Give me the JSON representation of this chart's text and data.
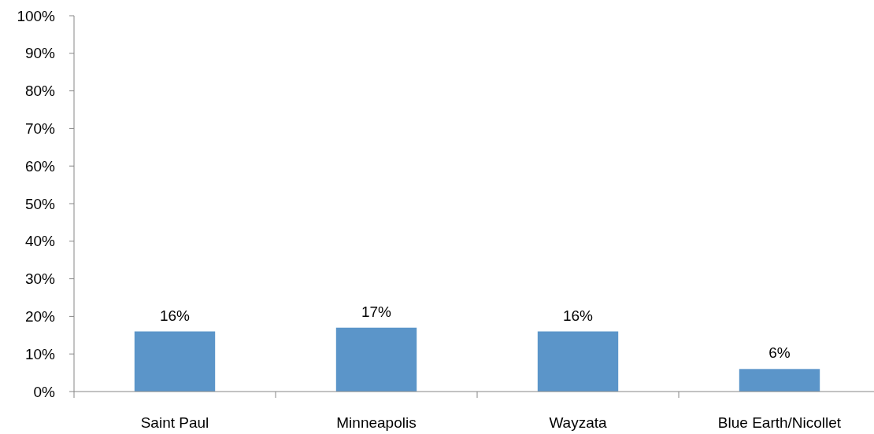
{
  "chart_data": {
    "type": "bar",
    "categories": [
      "Saint Paul",
      "Minneapolis",
      "Wayzata",
      "Blue Earth/Nicollet"
    ],
    "values": [
      16,
      17,
      16,
      6
    ],
    "color": "#5b95c9",
    "value_labels": [
      "16%",
      "17%",
      "16%",
      "6%"
    ],
    "ylim": [
      0,
      100
    ],
    "yticks": [
      {
        "value": 0,
        "label": "0%"
      },
      {
        "value": 10,
        "label": "10%"
      },
      {
        "value": 20,
        "label": "20%"
      },
      {
        "value": 30,
        "label": "30%"
      },
      {
        "value": 40,
        "label": "40%"
      },
      {
        "value": 50,
        "label": "50%"
      },
      {
        "value": 60,
        "label": "60%"
      },
      {
        "value": 70,
        "label": "70%"
      },
      {
        "value": 80,
        "label": "80%"
      },
      {
        "value": 90,
        "label": "90%"
      },
      {
        "value": 100,
        "label": "100%"
      }
    ],
    "grid": false
  }
}
